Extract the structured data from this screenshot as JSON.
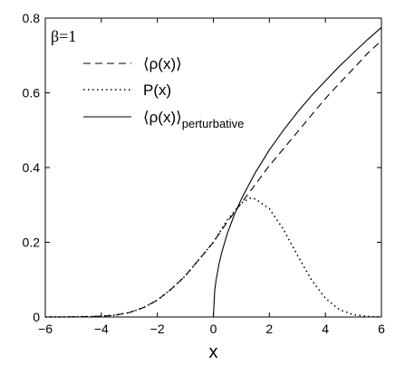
{
  "chart_data": {
    "type": "line",
    "title": "",
    "annotation": "β=1",
    "xlabel": "x",
    "ylabel": "",
    "xlim": [
      -6,
      6
    ],
    "ylim": [
      0,
      0.8
    ],
    "xticks": [
      -6,
      -4,
      -2,
      0,
      2,
      4,
      6
    ],
    "yticks": [
      0,
      0.2,
      0.4,
      0.6,
      0.8
    ],
    "xtick_labels": [
      "−6",
      "−4",
      "−2",
      "0",
      "2",
      "4",
      "6"
    ],
    "ytick_labels": [
      "0",
      "0.2",
      "0.4",
      "0.6",
      "0.8"
    ],
    "grid": false,
    "legend_position": "top-left",
    "series": [
      {
        "name": "⟨ρ(x)⟩",
        "style": "dashed",
        "x": [
          -6,
          -5,
          -4,
          -3.5,
          -3,
          -2.5,
          -2,
          -1.5,
          -1,
          -0.5,
          0,
          0.5,
          1,
          1.5,
          2,
          2.5,
          3,
          3.5,
          4,
          4.5,
          5,
          5.5,
          6
        ],
        "y": [
          0,
          0.0005,
          0.002,
          0.005,
          0.012,
          0.025,
          0.045,
          0.075,
          0.11,
          0.155,
          0.2,
          0.255,
          0.305,
          0.355,
          0.405,
          0.45,
          0.495,
          0.54,
          0.585,
          0.625,
          0.665,
          0.705,
          0.74
        ]
      },
      {
        "name": "P(x)",
        "style": "dotted",
        "x": [
          -6,
          -5,
          -4,
          -3.5,
          -3,
          -2.5,
          -2,
          -1.5,
          -1,
          -0.5,
          0,
          0.5,
          1,
          1.3,
          1.5,
          2,
          2.5,
          3,
          3.5,
          4,
          4.5,
          5,
          5.5,
          6
        ],
        "y": [
          0,
          0.0005,
          0.002,
          0.005,
          0.012,
          0.025,
          0.045,
          0.075,
          0.11,
          0.155,
          0.2,
          0.26,
          0.305,
          0.318,
          0.316,
          0.29,
          0.235,
          0.165,
          0.1,
          0.05,
          0.02,
          0.006,
          0.0015,
          0
        ]
      },
      {
        "name": "⟨ρ(x)⟩perturbative",
        "style": "solid",
        "x": [
          0,
          0.05,
          0.1,
          0.2,
          0.3,
          0.5,
          0.75,
          1,
          1.5,
          2,
          2.5,
          3,
          3.5,
          4,
          4.5,
          5,
          5.5,
          6
        ],
        "y": [
          0,
          0.071,
          0.1,
          0.141,
          0.173,
          0.224,
          0.274,
          0.316,
          0.387,
          0.447,
          0.5,
          0.548,
          0.592,
          0.632,
          0.671,
          0.707,
          0.742,
          0.775
        ]
      }
    ],
    "legend": [
      {
        "label": "⟨ρ(x)⟩",
        "sub": ""
      },
      {
        "label": "P(x)",
        "sub": ""
      },
      {
        "label": "⟨ρ(x)⟩",
        "sub": "perturbative"
      }
    ]
  }
}
